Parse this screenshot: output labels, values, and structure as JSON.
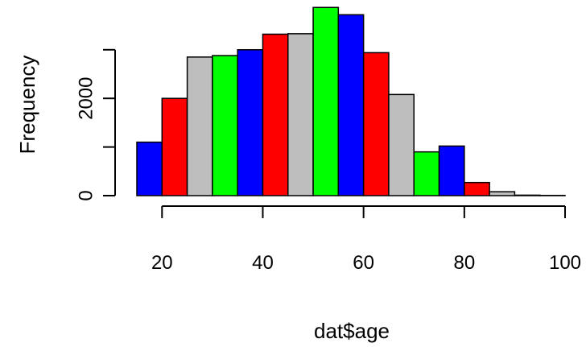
{
  "chart_data": {
    "type": "bar",
    "xlabel": "dat$age",
    "ylabel": "Frequency",
    "x_ticks": [
      "20",
      "40",
      "60",
      "80",
      "100"
    ],
    "y_ticks": [
      "0",
      "2000"
    ],
    "x_tick_values": [
      20,
      40,
      60,
      80,
      100
    ],
    "y_tick_values": [
      0,
      1000,
      2000,
      3000
    ],
    "ylim": [
      0,
      4000
    ],
    "xlim": [
      15,
      100
    ],
    "bin_edges": [
      15,
      20,
      25,
      30,
      35,
      40,
      45,
      50,
      55,
      60,
      65,
      70,
      75,
      80,
      85,
      90,
      95,
      100
    ],
    "values": [
      1100,
      2000,
      2850,
      2880,
      3000,
      3320,
      3330,
      3870,
      3720,
      2940,
      2080,
      900,
      1020,
      270,
      80,
      10,
      5
    ],
    "colors": [
      "#0000ff",
      "#ff0000",
      "#bebebe",
      "#00ff00",
      "#0000ff",
      "#ff0000",
      "#bebebe",
      "#00ff00",
      "#0000ff",
      "#ff0000",
      "#bebebe",
      "#00ff00",
      "#0000ff",
      "#ff0000",
      "#bebebe",
      "#00ff00",
      "#0000ff"
    ]
  }
}
